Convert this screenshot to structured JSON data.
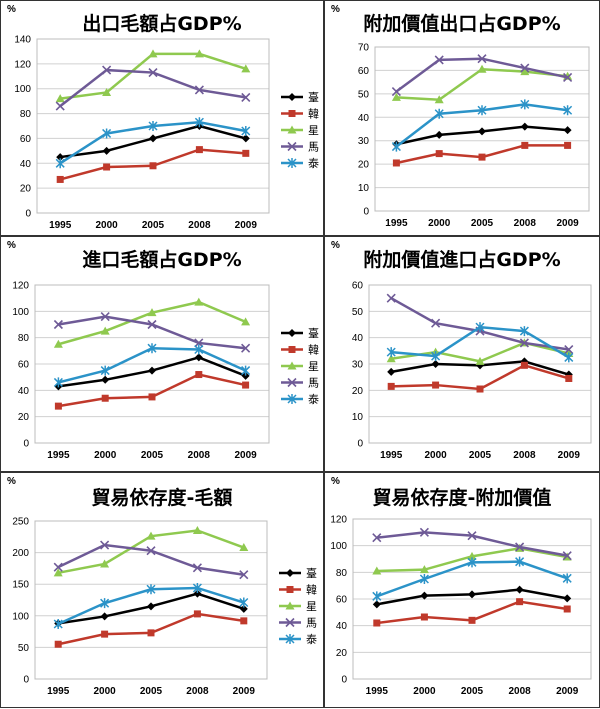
{
  "chart_data": [
    {
      "type": "line",
      "title": "出口毛額占GDP%",
      "unit": "%",
      "x": [
        "1995",
        "2000",
        "2005",
        "2008",
        "2009"
      ],
      "ylim": [
        0,
        140
      ],
      "yticks": [
        0,
        20,
        40,
        60,
        80,
        100,
        120,
        140
      ],
      "legend": "right",
      "series": [
        {
          "name": "臺",
          "values": [
            45,
            50,
            60,
            70,
            60
          ]
        },
        {
          "name": "韓",
          "values": [
            27,
            37,
            38,
            51,
            48
          ]
        },
        {
          "name": "星",
          "values": [
            92,
            97,
            128,
            128,
            116
          ]
        },
        {
          "name": "馬",
          "values": [
            86,
            115,
            113,
            99,
            93
          ]
        },
        {
          "name": "泰",
          "values": [
            40,
            64,
            70,
            73,
            66
          ]
        }
      ]
    },
    {
      "type": "line",
      "title": "附加價值出口占GDP%",
      "unit": "%",
      "x": [
        "1995",
        "2000",
        "2005",
        "2008",
        "2009"
      ],
      "ylim": [
        0,
        70
      ],
      "yticks": [
        0,
        10,
        20,
        30,
        40,
        50,
        60,
        70
      ],
      "legend": "none",
      "series": [
        {
          "name": "臺",
          "values": [
            28.5,
            32.5,
            34,
            36,
            34.5
          ]
        },
        {
          "name": "韓",
          "values": [
            20.5,
            24.5,
            23,
            28,
            28
          ]
        },
        {
          "name": "星",
          "values": [
            48.5,
            47.5,
            60.5,
            59.5,
            57.5
          ]
        },
        {
          "name": "馬",
          "values": [
            51,
            64.5,
            65,
            61,
            57
          ]
        },
        {
          "name": "泰",
          "values": [
            27.5,
            41.5,
            43,
            45.5,
            43
          ]
        }
      ]
    },
    {
      "type": "line",
      "title": "進口毛額占GDP%",
      "unit": "%",
      "x": [
        "1995",
        "2000",
        "2005",
        "2008",
        "2009"
      ],
      "ylim": [
        0,
        120
      ],
      "yticks": [
        0,
        20,
        40,
        60,
        80,
        100,
        120
      ],
      "legend": "right",
      "series": [
        {
          "name": "臺",
          "values": [
            43,
            48,
            55,
            65,
            51
          ]
        },
        {
          "name": "韓",
          "values": [
            28,
            34,
            35,
            52,
            44
          ]
        },
        {
          "name": "星",
          "values": [
            75,
            85,
            99,
            107,
            92
          ]
        },
        {
          "name": "馬",
          "values": [
            90,
            96,
            90,
            76,
            72
          ]
        },
        {
          "name": "泰",
          "values": [
            46,
            55,
            72,
            71,
            55
          ]
        }
      ]
    },
    {
      "type": "line",
      "title": "附加價值進口占GDP%",
      "unit": "%",
      "x": [
        "1995",
        "2000",
        "2005",
        "2008",
        "2009"
      ],
      "ylim": [
        0,
        60
      ],
      "yticks": [
        0,
        10,
        20,
        30,
        40,
        50,
        60
      ],
      "legend": "none",
      "series": [
        {
          "name": "臺",
          "values": [
            27,
            30,
            29.5,
            31,
            26
          ]
        },
        {
          "name": "韓",
          "values": [
            21.5,
            22,
            20.5,
            29.5,
            24.5
          ]
        },
        {
          "name": "星",
          "values": [
            32,
            34.5,
            31,
            38,
            34
          ]
        },
        {
          "name": "馬",
          "values": [
            55,
            45.5,
            42.5,
            38,
            35.5
          ]
        },
        {
          "name": "泰",
          "values": [
            34.5,
            33,
            44,
            42.5,
            32.5
          ]
        }
      ]
    },
    {
      "type": "line",
      "title": "貿易依存度-毛額",
      "unit": "%",
      "x": [
        "1995",
        "2000",
        "2005",
        "2008",
        "2009"
      ],
      "ylim": [
        0,
        250
      ],
      "yticks": [
        0,
        50,
        100,
        150,
        200,
        250
      ],
      "legend": "right",
      "series": [
        {
          "name": "臺",
          "values": [
            88,
            99,
            115,
            135,
            111
          ]
        },
        {
          "name": "韓",
          "values": [
            55,
            71,
            73,
            103,
            92
          ]
        },
        {
          "name": "星",
          "values": [
            168,
            182,
            226,
            235,
            208
          ]
        },
        {
          "name": "馬",
          "values": [
            177,
            212,
            203,
            176,
            165
          ]
        },
        {
          "name": "泰",
          "values": [
            87,
            120,
            142,
            144,
            121
          ]
        }
      ]
    },
    {
      "type": "line",
      "title": "貿易依存度-附加價值",
      "unit": "%",
      "x": [
        "1995",
        "2000",
        "2005",
        "2008",
        "2009"
      ],
      "ylim": [
        0,
        120
      ],
      "yticks": [
        0,
        20,
        40,
        60,
        80,
        100,
        120
      ],
      "legend": "none",
      "series": [
        {
          "name": "臺",
          "values": [
            56,
            62.5,
            63.5,
            67,
            60.5
          ]
        },
        {
          "name": "韓",
          "values": [
            42,
            46.5,
            44,
            58,
            52.5
          ]
        },
        {
          "name": "星",
          "values": [
            81,
            82,
            92,
            98,
            91.5
          ]
        },
        {
          "name": "馬",
          "values": [
            106,
            110,
            107.5,
            99,
            92.5
          ]
        },
        {
          "name": "泰",
          "values": [
            62,
            75,
            87.5,
            88,
            75.5
          ]
        }
      ]
    }
  ],
  "series_colors": {
    "臺": "#000000",
    "韓": "#c0392b",
    "星": "#8fc94f",
    "馬": "#6e5a96",
    "泰": "#2b93c8"
  },
  "series_markers": {
    "臺": "diamond",
    "韓": "square",
    "星": "triangle",
    "馬": "x",
    "泰": "star"
  }
}
